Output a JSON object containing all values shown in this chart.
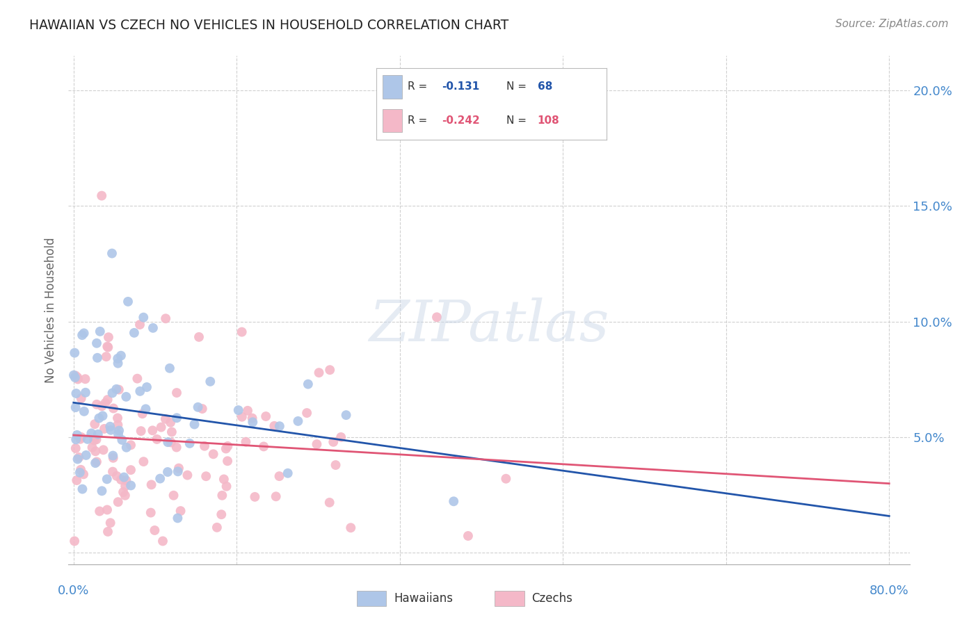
{
  "title": "HAWAIIAN VS CZECH NO VEHICLES IN HOUSEHOLD CORRELATION CHART",
  "source": "Source: ZipAtlas.com",
  "ylabel": "No Vehicles in Household",
  "hawaiians_color": "#aec6e8",
  "czechs_color": "#f4b8c8",
  "hawaiians_line_color": "#2255aa",
  "czechs_line_color": "#e05575",
  "background_color": "#ffffff",
  "grid_color": "#d0d0d0",
  "axis_label_color": "#4488cc",
  "watermark": "ZIPatlas",
  "hawaiians_R": -0.131,
  "hawaiians_N": 68,
  "czechs_R": -0.242,
  "czechs_N": 108,
  "hawaiians_seed": 12,
  "czechs_seed": 55,
  "marker_size": 100
}
